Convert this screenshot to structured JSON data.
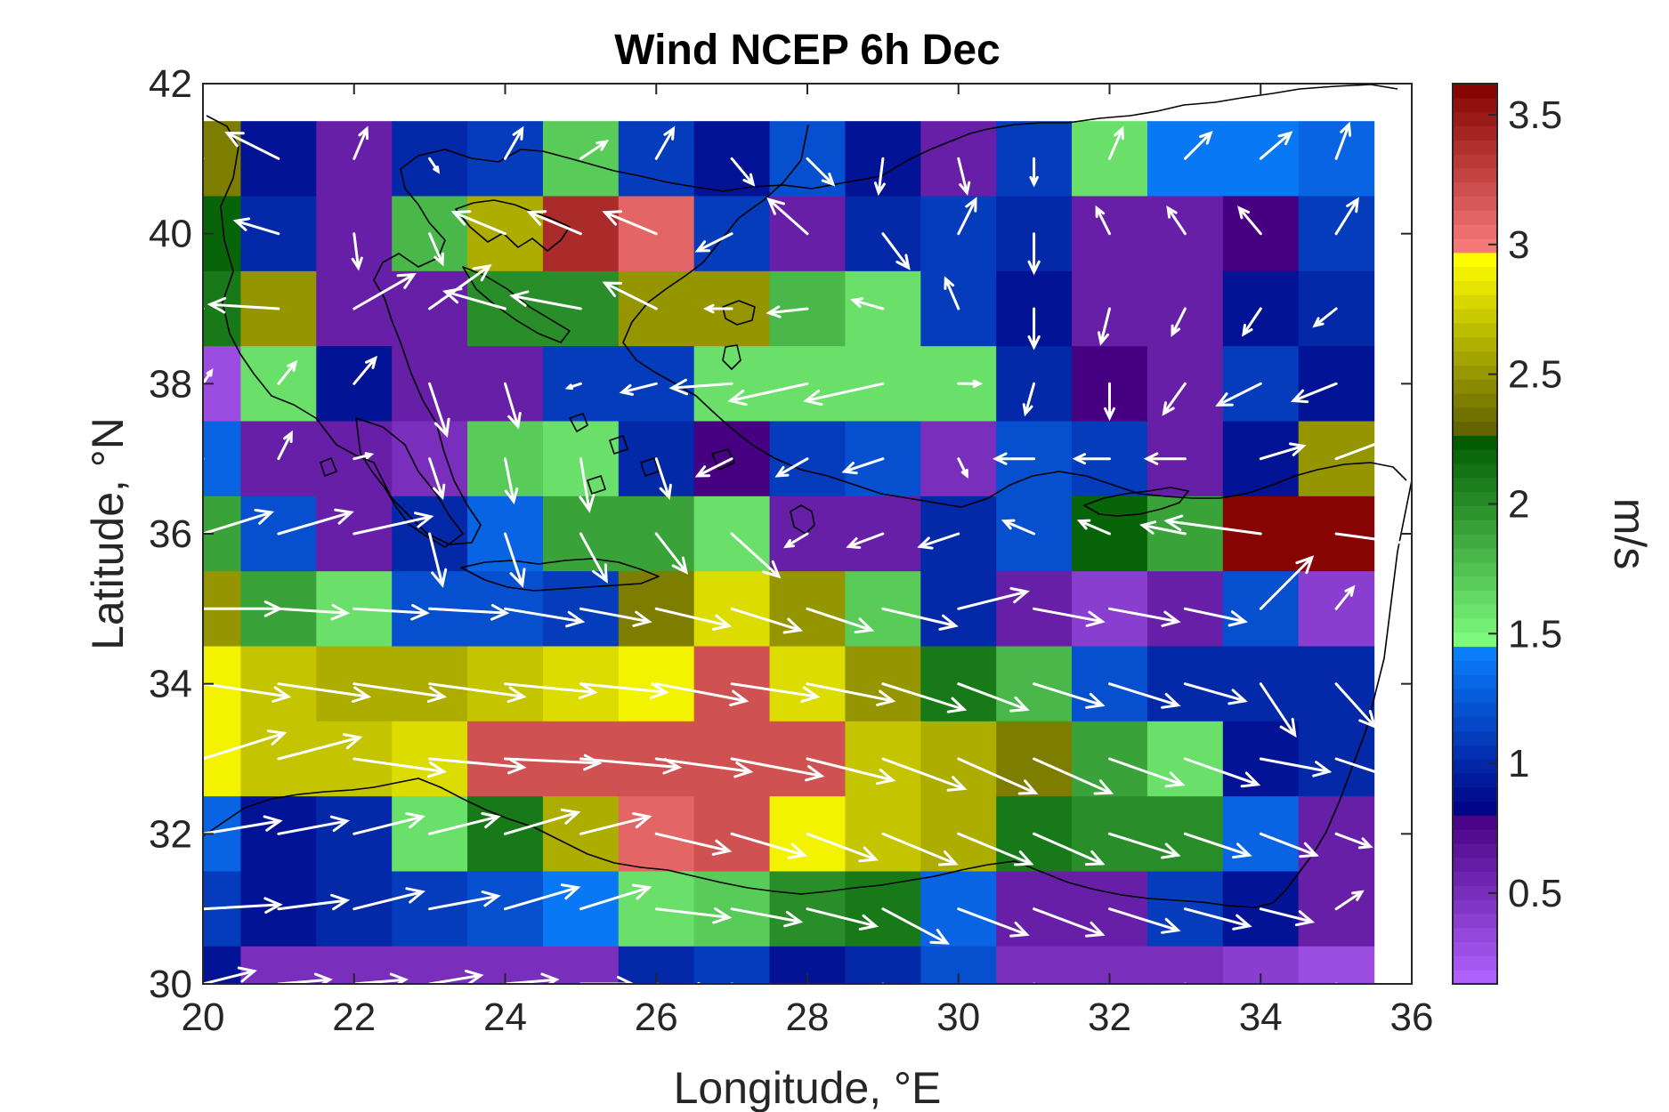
{
  "chart_data": {
    "type": "heatmap",
    "title": "Wind NCEP 6h Dec",
    "xlabel": "Longitude, °E",
    "ylabel": "Latitude, °N",
    "xlim": [
      20,
      36
    ],
    "ylim": [
      30,
      42
    ],
    "x_ticks": [
      20,
      22,
      24,
      26,
      28,
      30,
      32,
      34,
      36
    ],
    "y_ticks": [
      30,
      32,
      34,
      36,
      38,
      40,
      42
    ],
    "grid": false,
    "cell_size_deg": 1,
    "lon_centers": [
      20,
      21,
      22,
      23,
      24,
      25,
      26,
      27,
      28,
      29,
      30,
      31,
      32,
      33,
      34,
      35
    ],
    "lat_centers": [
      41,
      40,
      39,
      38,
      37,
      36,
      35,
      34,
      33,
      32,
      31,
      30
    ],
    "speed_ms": [
      [
        2.4,
        0.9,
        0.6,
        1.0,
        1.1,
        1.7,
        1.1,
        0.9,
        1.2,
        0.9,
        0.6,
        1.1,
        1.6,
        1.4,
        1.4,
        1.3
      ],
      [
        2.2,
        1.0,
        0.6,
        1.8,
        2.6,
        3.4,
        3.1,
        1.1,
        0.6,
        1.0,
        1.1,
        1.0,
        0.6,
        0.6,
        0.8,
        1.1
      ],
      [
        2.1,
        2.5,
        0.6,
        0.6,
        2.0,
        2.0,
        2.5,
        2.5,
        1.8,
        1.6,
        1.1,
        0.9,
        0.6,
        0.6,
        0.9,
        1.0
      ],
      [
        0.3,
        1.6,
        0.9,
        0.6,
        0.6,
        1.1,
        1.1,
        1.6,
        1.6,
        1.6,
        1.6,
        1.0,
        0.8,
        0.6,
        1.1,
        0.9
      ],
      [
        1.3,
        0.6,
        0.6,
        0.5,
        1.7,
        1.6,
        1.0,
        0.8,
        1.1,
        1.2,
        0.5,
        1.2,
        1.1,
        0.6,
        0.9,
        2.5
      ],
      [
        1.9,
        1.2,
        0.6,
        1.0,
        1.3,
        1.9,
        1.9,
        1.6,
        0.6,
        0.6,
        1.0,
        1.2,
        2.2,
        1.9,
        3.6,
        3.6
      ],
      [
        2.5,
        1.9,
        1.6,
        1.2,
        1.2,
        1.1,
        2.4,
        2.8,
        2.5,
        1.7,
        1.0,
        0.6,
        0.4,
        0.6,
        1.2,
        0.4
      ],
      [
        2.9,
        2.7,
        2.6,
        2.6,
        2.7,
        2.8,
        2.9,
        3.2,
        2.8,
        2.5,
        2.1,
        1.8,
        1.2,
        1.0,
        1.0,
        1.0
      ],
      [
        2.9,
        2.7,
        2.7,
        2.8,
        3.2,
        3.2,
        3.2,
        3.2,
        3.2,
        2.7,
        2.6,
        2.4,
        1.9,
        1.6,
        0.9,
        1.0
      ],
      [
        1.3,
        0.9,
        1.0,
        1.6,
        2.1,
        2.6,
        3.1,
        3.2,
        2.9,
        2.7,
        2.6,
        2.1,
        2.0,
        2.0,
        1.3,
        0.6
      ],
      [
        1.1,
        0.9,
        1.0,
        1.1,
        1.2,
        1.4,
        1.6,
        1.7,
        2.0,
        2.1,
        1.3,
        0.6,
        0.6,
        1.1,
        0.9,
        0.6
      ],
      [
        0.9,
        0.5,
        0.5,
        0.5,
        0.5,
        0.5,
        1.0,
        1.1,
        0.9,
        1.0,
        1.2,
        0.5,
        0.5,
        0.5,
        0.4,
        0.3
      ]
    ],
    "wind_u_ms": [
      [
        -1.5,
        -1.2,
        0.3,
        0.2,
        0.4,
        0.6,
        0.4,
        0.5,
        0.6,
        -0.1,
        0.2,
        0.0,
        0.3,
        0.6,
        0.7,
        0.3
      ],
      [
        -1.4,
        -1.0,
        0.1,
        0.3,
        -1.2,
        -1.2,
        -1.2,
        -0.8,
        -0.9,
        0.6,
        0.4,
        0.0,
        -0.3,
        -0.4,
        -0.5,
        0.5
      ],
      [
        -1.6,
        -1.6,
        1.4,
        1.4,
        -1.4,
        -1.6,
        -1.2,
        -0.6,
        -0.9,
        -0.7,
        -0.3,
        0.0,
        -0.2,
        -0.3,
        -0.4,
        -0.5
      ],
      [
        0.2,
        0.4,
        0.5,
        0.4,
        0.3,
        -0.3,
        -0.8,
        -1.4,
        -1.8,
        -1.8,
        0.5,
        -0.2,
        0.0,
        -0.5,
        -1.0,
        -1.0
      ],
      [
        -0.9,
        0.3,
        0.4,
        0.3,
        0.2,
        0.2,
        0.3,
        -0.8,
        -0.7,
        -0.9,
        0.2,
        -0.9,
        -0.8,
        -0.9,
        1.0,
        1.6
      ],
      [
        1.6,
        1.7,
        1.8,
        0.3,
        0.4,
        0.6,
        0.7,
        1.1,
        -0.5,
        -0.8,
        -0.9,
        -0.7,
        -0.7,
        -1.0,
        -2.2,
        2.2
      ],
      [
        1.8,
        1.6,
        1.7,
        1.8,
        1.8,
        1.6,
        1.7,
        1.6,
        1.5,
        1.7,
        1.6,
        1.6,
        1.6,
        1.4,
        1.2,
        0.4
      ],
      [
        2.0,
        2.1,
        2.1,
        2.2,
        2.1,
        2.0,
        2.1,
        2.0,
        2.0,
        1.9,
        1.6,
        1.6,
        1.6,
        1.4,
        0.8,
        0.9
      ],
      [
        1.9,
        1.9,
        2.1,
        2.2,
        2.2,
        2.3,
        2.2,
        2.1,
        2.0,
        1.9,
        1.8,
        1.8,
        1.7,
        1.7,
        1.6,
        1.5
      ],
      [
        1.8,
        1.6,
        1.6,
        1.6,
        1.7,
        1.6,
        1.7,
        1.7,
        1.6,
        1.7,
        1.7,
        1.6,
        1.6,
        1.5,
        1.3,
        0.8
      ],
      [
        1.8,
        1.6,
        1.6,
        1.6,
        1.7,
        1.6,
        1.7,
        1.6,
        1.6,
        1.5,
        1.6,
        1.6,
        1.6,
        1.5,
        1.2,
        0.6
      ],
      [
        1.2,
        1.2,
        1.2,
        1.2,
        1.2,
        1.2,
        1.3,
        1.3,
        1.3,
        1.3,
        1.3,
        1.2,
        1.1,
        1.1,
        1.0,
        0.8
      ]
    ],
    "wind_v_ms": [
      [
        0.6,
        0.6,
        0.7,
        -0.3,
        0.7,
        0.4,
        0.7,
        -0.6,
        -0.6,
        -0.8,
        -0.8,
        -0.6,
        0.7,
        0.6,
        0.6,
        0.8
      ],
      [
        0.6,
        0.3,
        -0.8,
        -0.7,
        0.5,
        0.5,
        0.5,
        -0.4,
        0.8,
        -0.8,
        0.8,
        -0.9,
        0.6,
        0.6,
        0.6,
        0.8
      ],
      [
        0.0,
        0.1,
        0.8,
        1.0,
        0.4,
        0.3,
        0.6,
        0.0,
        -0.1,
        0.2,
        0.7,
        -0.9,
        -0.8,
        -0.6,
        -0.6,
        -0.4
      ],
      [
        0.3,
        0.5,
        0.6,
        -1.2,
        -1.0,
        -0.1,
        -0.2,
        -0.1,
        -0.4,
        -0.4,
        0.0,
        -0.7,
        -0.8,
        -0.7,
        -0.5,
        -0.4
      ],
      [
        0.0,
        0.6,
        0.1,
        -0.9,
        -1.0,
        -1.2,
        -0.9,
        -0.4,
        -0.4,
        -0.3,
        -0.4,
        0.0,
        0.0,
        0.0,
        0.3,
        0.6
      ],
      [
        0.5,
        0.5,
        0.4,
        -1.2,
        -1.2,
        -1.1,
        -0.9,
        -1.0,
        -0.3,
        -0.3,
        -0.3,
        0.3,
        0.3,
        0.2,
        0.3,
        -0.3
      ],
      [
        0.0,
        -0.1,
        -0.1,
        -0.1,
        -0.3,
        -0.3,
        -0.4,
        -0.5,
        -0.5,
        -0.4,
        0.4,
        -0.3,
        -0.3,
        -0.3,
        1.2,
        0.5
      ],
      [
        -0.3,
        -0.3,
        -0.3,
        -0.3,
        -0.2,
        -0.2,
        -0.4,
        -0.3,
        -0.4,
        -0.6,
        -0.6,
        -0.5,
        -0.5,
        -0.4,
        -1.2,
        -1.0
      ],
      [
        0.6,
        0.5,
        -0.3,
        -0.2,
        -0.1,
        -0.2,
        -0.3,
        -0.4,
        -0.5,
        -0.7,
        -0.8,
        -0.8,
        -0.6,
        -0.6,
        -0.3,
        -0.5
      ],
      [
        0.3,
        0.3,
        0.4,
        0.4,
        0.5,
        0.4,
        -0.4,
        -0.5,
        -0.6,
        -0.7,
        -0.7,
        -0.7,
        -0.5,
        -0.5,
        -0.5,
        -0.3
      ],
      [
        0.1,
        0.2,
        0.4,
        0.3,
        0.5,
        0.5,
        -0.2,
        -0.3,
        -0.4,
        -0.8,
        -0.6,
        -0.6,
        -0.5,
        -0.4,
        -0.3,
        0.4
      ],
      [
        0.3,
        0.1,
        0.1,
        0.2,
        0.1,
        0.0,
        -0.2,
        -0.3,
        -0.4,
        -0.5,
        -0.5,
        -0.5,
        -0.4,
        -0.4,
        -0.3,
        -0.2
      ]
    ],
    "colorbar": {
      "label": "m/s",
      "range": [
        0.15,
        3.62
      ],
      "ticks": [
        0.5,
        1,
        1.5,
        2,
        2.5,
        3,
        3.5
      ],
      "tick_labels": [
        "0.5",
        "1",
        "1.5",
        "2",
        "2.5",
        "3",
        "3.5"
      ],
      "placement": "right",
      "color_bands": [
        {
          "from": 0.15,
          "to": 0.8,
          "start_color": "#b464ff",
          "end_color": "#460082"
        },
        {
          "from": 0.8,
          "to": 1.45,
          "start_color": "#000082",
          "end_color": "#0a82ff"
        },
        {
          "from": 1.45,
          "to": 2.25,
          "start_color": "#82ff82",
          "end_color": "#005a00"
        },
        {
          "from": 2.25,
          "to": 2.95,
          "start_color": "#5a5a00",
          "end_color": "#ffff00"
        },
        {
          "from": 2.95,
          "to": 3.62,
          "start_color": "#ff8282",
          "end_color": "#820000"
        }
      ]
    },
    "arrow_color": "#ffffff",
    "coastline_color": "#000000"
  }
}
